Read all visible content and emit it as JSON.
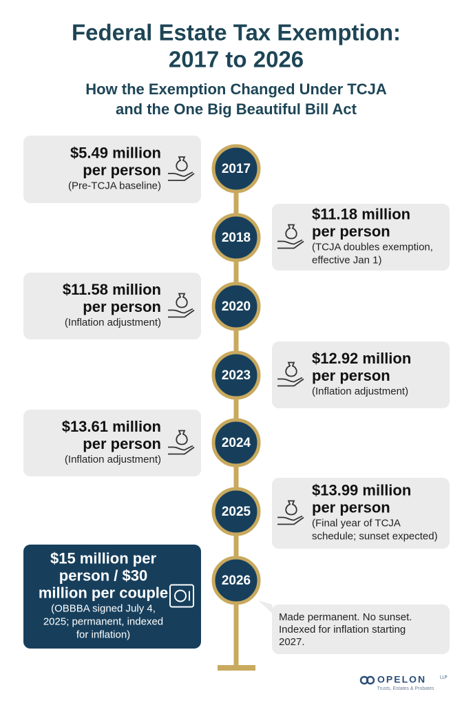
{
  "title": [
    "Federal Estate Tax Exemption:",
    "2017 to 2026"
  ],
  "subtitle": [
    "How the Exemption Changed Under TCJA",
    "and the One Big Beautiful Bill Act"
  ],
  "events": [
    {
      "year": "2017",
      "headline": [
        "$5.49 million",
        "per person"
      ],
      "note": [
        "(Pre-TCJA baseline)"
      ]
    },
    {
      "year": "2018",
      "headline": [
        "$11.18 million",
        "per person"
      ],
      "note": [
        "(TCJA doubles exemption,",
        "effective Jan 1)"
      ]
    },
    {
      "year": "2020",
      "headline": [
        "$11.58 million",
        "per person"
      ],
      "note": [
        "(Inflation adjustment)"
      ]
    },
    {
      "year": "2023",
      "headline": [
        "$12.92 million",
        "per person"
      ],
      "note": [
        "(Inflation adjustment)"
      ]
    },
    {
      "year": "2024",
      "headline": [
        "$13.61 million",
        "per person"
      ],
      "note": [
        "(Inflation adjustment)"
      ]
    },
    {
      "year": "2025",
      "headline": [
        "$13.99 million",
        "per person"
      ],
      "note": [
        "(Final year of TCJA",
        "schedule; sunset expected)"
      ]
    },
    {
      "year": "2026",
      "headline": [
        "$15 million per",
        "person / $30",
        "million per couple"
      ],
      "note": [
        "(OBBBA signed July 4,",
        "2025; permanent, indexed",
        "for inflation)"
      ]
    }
  ],
  "callout": [
    "Made permanent. No sunset.",
    "Indexed for inflation starting",
    "2027."
  ],
  "logo": {
    "name": "OPELON",
    "suffix": "LLP",
    "tagline": "Trusts, Estates & Probates"
  }
}
